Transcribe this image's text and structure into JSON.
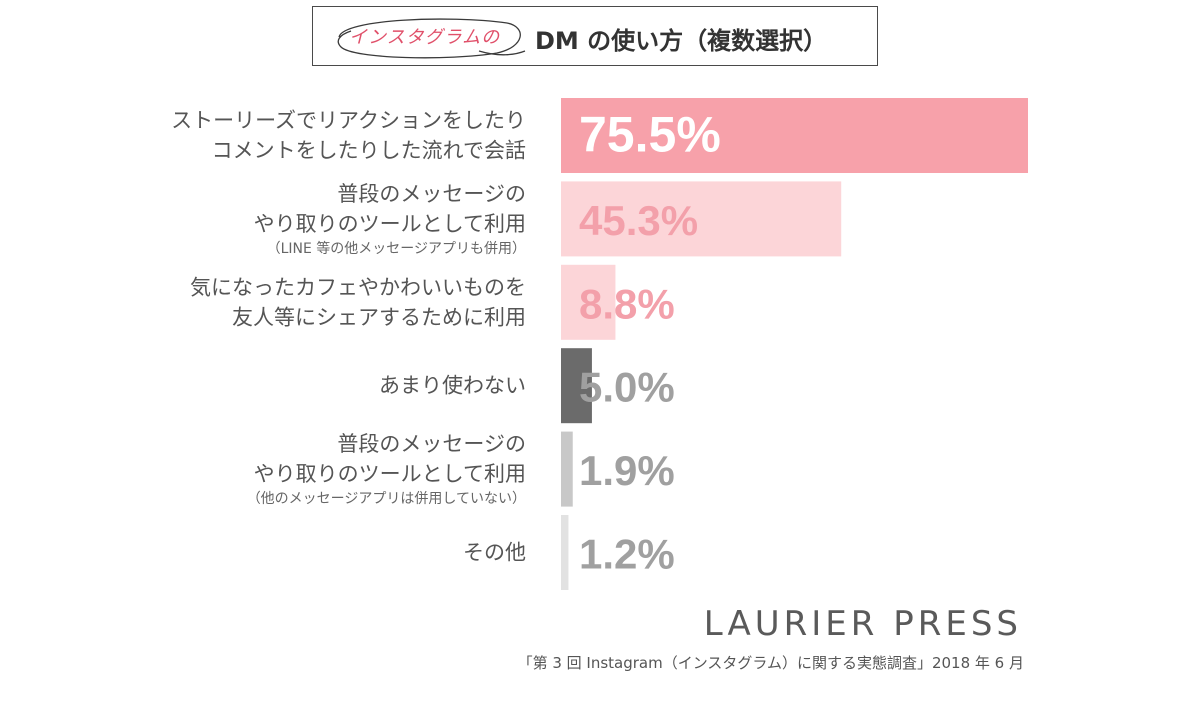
{
  "title": {
    "prefix": "インスタグラムの",
    "main": "DM の使い方（複数選択）"
  },
  "chart_data": {
    "type": "bar",
    "orientation": "horizontal",
    "xlim": [
      0,
      100
    ],
    "categories": [
      {
        "lines": [
          "ストーリーズでリアクションをしたり",
          "コメントをしたりした流れで会話"
        ],
        "note": ""
      },
      {
        "lines": [
          "普段のメッセージの",
          "やり取りのツールとして利用"
        ],
        "note": "（LINE 等の他メッセージアプリも併用）"
      },
      {
        "lines": [
          "気になったカフェやかわいいものを",
          "友人等にシェアするために利用"
        ],
        "note": ""
      },
      {
        "lines": [
          "あまり使わない"
        ],
        "note": ""
      },
      {
        "lines": [
          "普段のメッセージの",
          "やり取りのツールとして利用"
        ],
        "note": "（他のメッセージアプリは併用していない）"
      },
      {
        "lines": [
          "その他"
        ],
        "note": ""
      }
    ],
    "values": [
      75.5,
      45.3,
      8.8,
      5.0,
      1.9,
      1.2
    ],
    "value_labels": [
      "75.5%",
      "45.3%",
      "8.8%",
      "5.0%",
      "1.9%",
      "1.2%"
    ],
    "bar_colors": [
      "#f7a1aa",
      "#fcd5d8",
      "#fcd5d8",
      "#6b6b6b",
      "#c8c8c8",
      "#e2e2e2"
    ],
    "label_colors": [
      "#ffffff",
      "#f3a0aa",
      "#f3a0aa",
      "#a0a0a0",
      "#a0a0a0",
      "#a0a0a0"
    ]
  },
  "footer": {
    "brand": "LAURIER PRESS",
    "source": "「第 3 回 Instagram（インスタグラム）に関する実態調査」2018 年 6 月"
  }
}
